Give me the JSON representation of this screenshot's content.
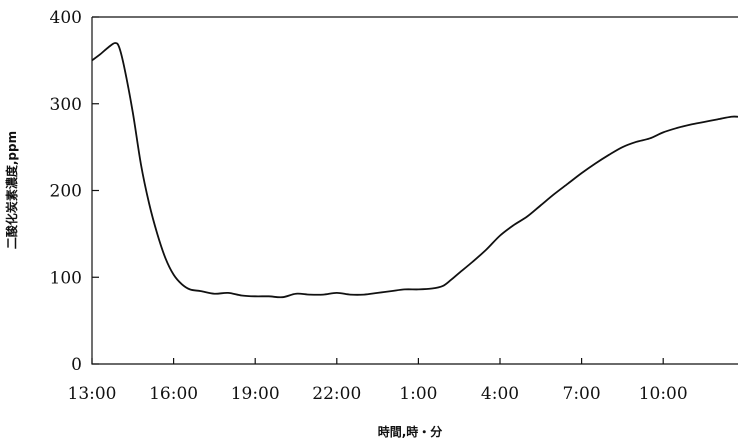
{
  "chart_data": {
    "type": "line",
    "title": "",
    "xlabel": "時間,時・分",
    "ylabel": "二酸化炭素濃度,ppm",
    "ylim": [
      0,
      400
    ],
    "xlim": [
      0,
      23.75
    ],
    "grid": false,
    "y_ticks": [
      0,
      100,
      200,
      300,
      400
    ],
    "x_ticks": [
      {
        "value": 0,
        "label": "13:00"
      },
      {
        "value": 3,
        "label": "16:00"
      },
      {
        "value": 6,
        "label": "19:00"
      },
      {
        "value": 9,
        "label": "22:00"
      },
      {
        "value": 12,
        "label": "1:00"
      },
      {
        "value": 15,
        "label": "4:00"
      },
      {
        "value": 18,
        "label": "7:00"
      },
      {
        "value": 21,
        "label": "10:00"
      }
    ],
    "series": [
      {
        "x": [
          0,
          0.3,
          0.6,
          0.85,
          1.0,
          1.2,
          1.5,
          1.8,
          2.1,
          2.4,
          2.7,
          3.0,
          3.3,
          3.6,
          4.0,
          4.5,
          5.0,
          5.5,
          6.0,
          6.5,
          7.0,
          7.5,
          8.0,
          8.5,
          9.0,
          9.5,
          10.0,
          10.5,
          11.0,
          11.5,
          12.0,
          12.5,
          12.9,
          13.2,
          13.5,
          14.0,
          14.5,
          15.0,
          15.5,
          16.0,
          16.5,
          17.0,
          17.5,
          18.0,
          18.5,
          19.0,
          19.5,
          20.0,
          20.5,
          21.0,
          21.5,
          22.0,
          22.5,
          23.0,
          23.5,
          23.75
        ],
        "y": [
          350,
          357,
          365,
          370,
          365,
          340,
          290,
          230,
          185,
          150,
          122,
          103,
          92,
          86,
          84,
          81,
          82,
          79,
          78,
          78,
          77,
          81,
          80,
          80,
          82,
          80,
          80,
          82,
          84,
          86,
          86,
          87,
          90,
          97,
          105,
          118,
          132,
          148,
          160,
          170,
          183,
          196,
          208,
          220,
          231,
          241,
          250,
          256,
          260,
          267,
          272,
          276,
          279,
          282,
          285,
          285
        ]
      }
    ]
  }
}
